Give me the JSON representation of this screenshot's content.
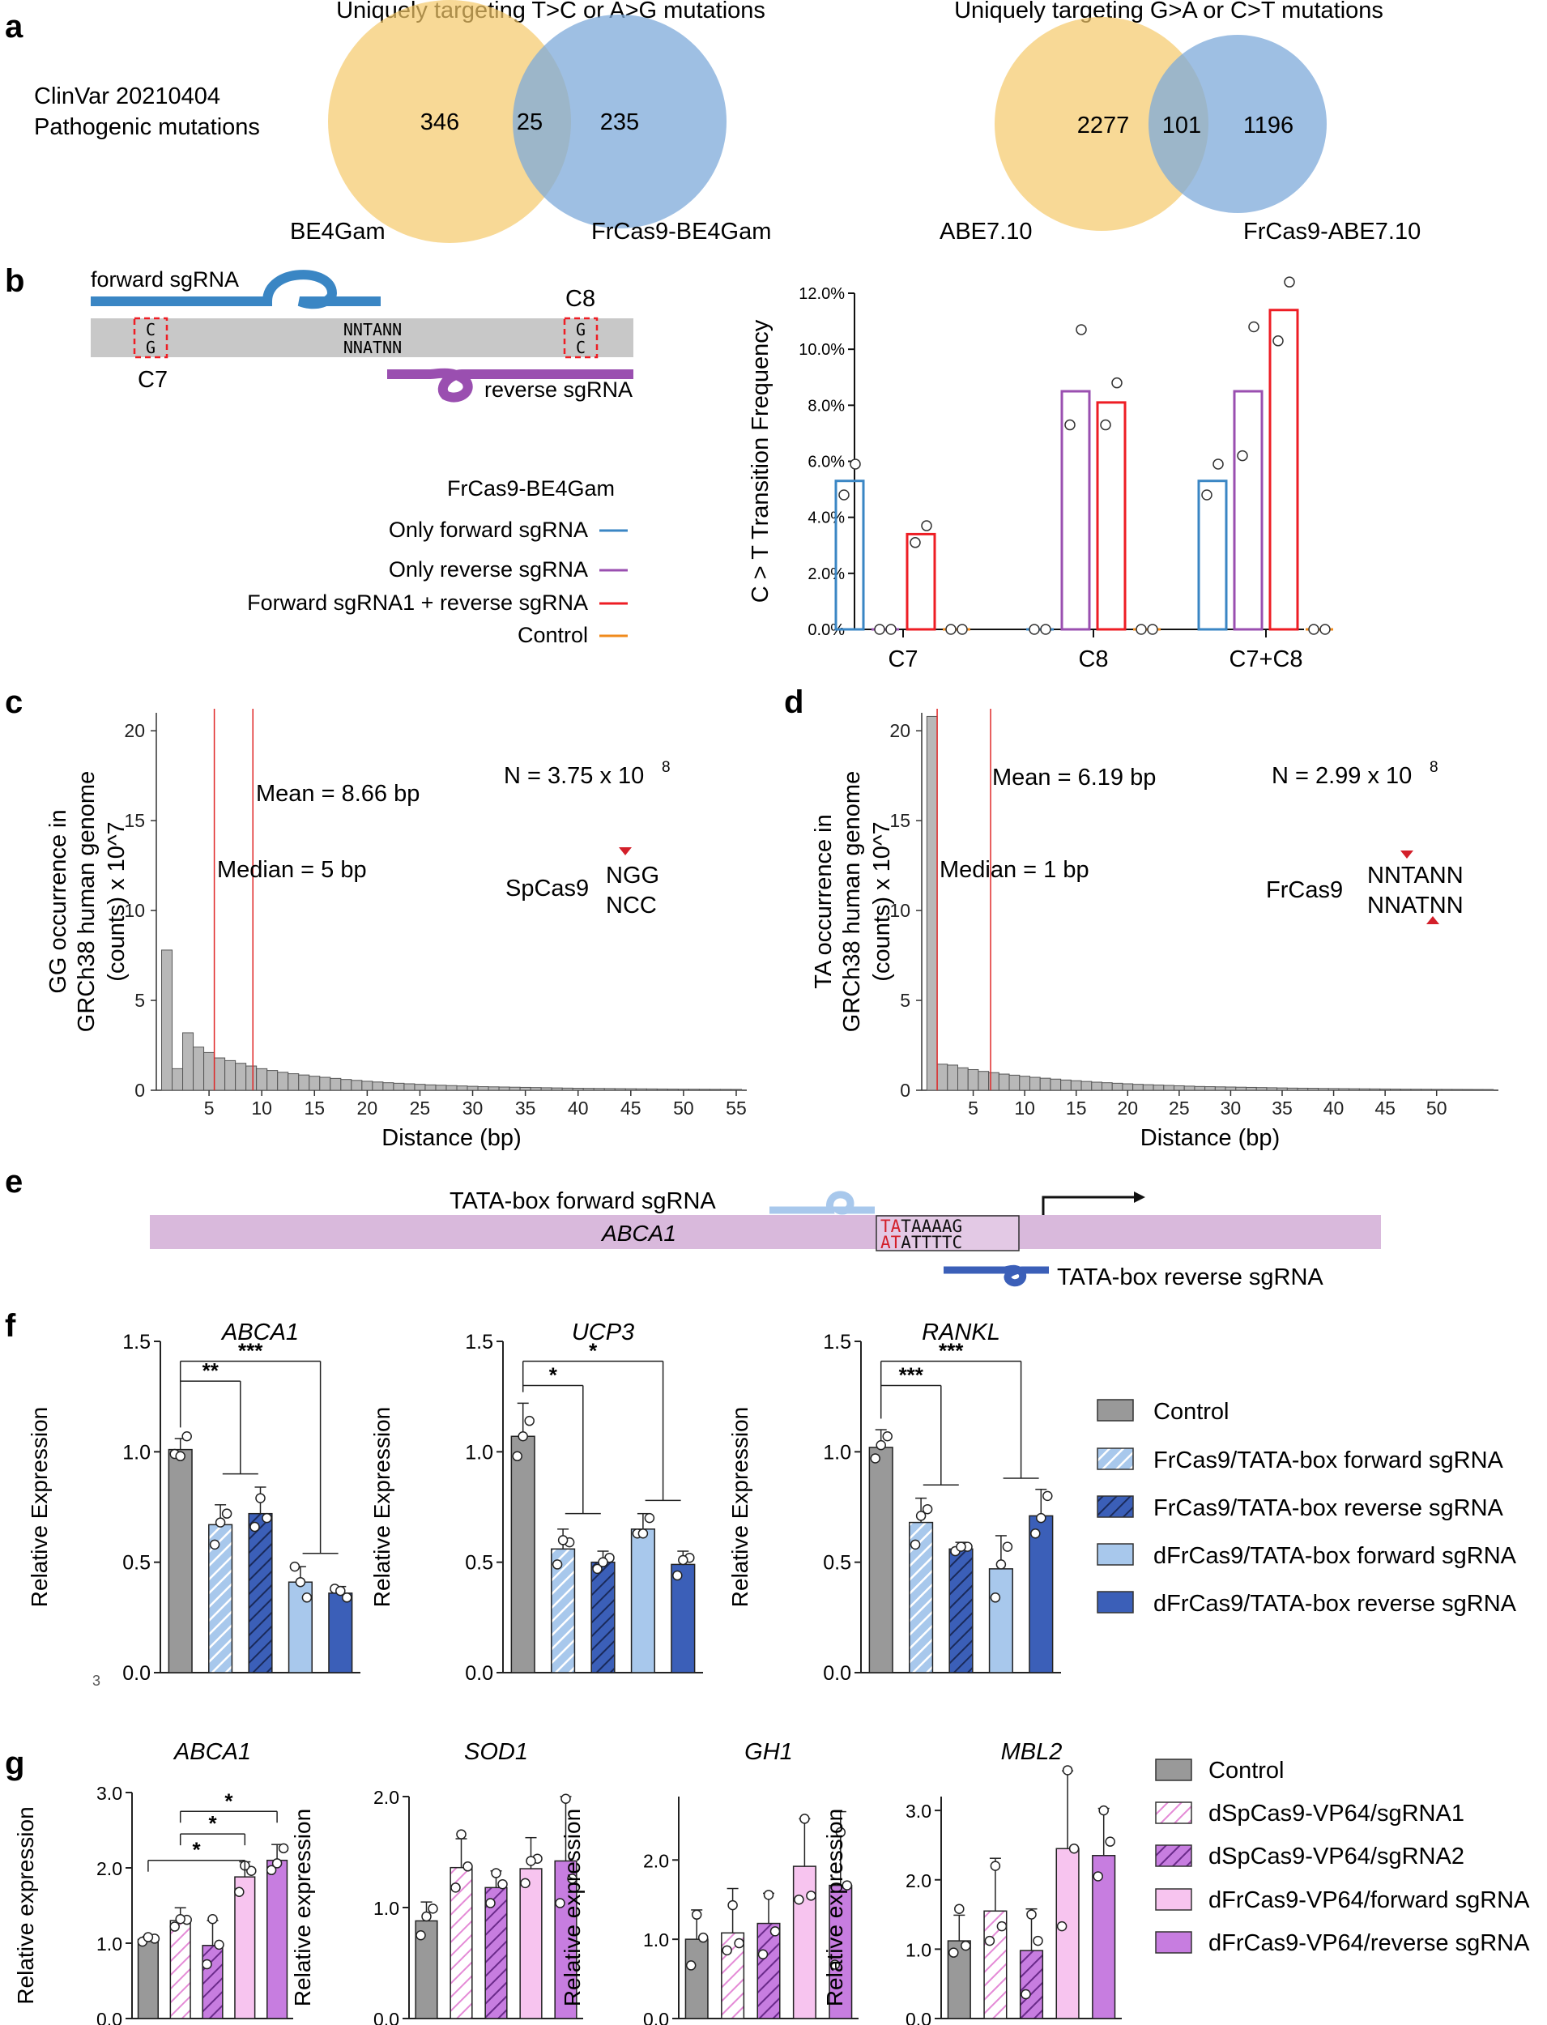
{
  "panel_labels": {
    "a": "a",
    "b": "b",
    "c": "c",
    "d": "d",
    "e": "e",
    "f": "f",
    "g": "g"
  },
  "colors": {
    "venn_left": "#f5c96a",
    "venn_right": "#7ea9d9",
    "grey": "#999999",
    "light_blue": "#a8c8ec",
    "dark_blue": "#3b5fb8",
    "pink": "#f7c4ef",
    "purple": "#c77de0",
    "blue_line": "#3a86c4",
    "purple_line": "#9a4fb0",
    "red_line": "#ee1d24",
    "orange_line": "#f08a1c"
  },
  "panel_a": {
    "row_label_1": "ClinVar 20210404",
    "row_label_2": "Pathogenic mutations",
    "venns": [
      {
        "title": "Uniquely targeting T>C or A>G mutations",
        "left_count": "346",
        "overlap_count": "25",
        "right_count": "235",
        "left_label": "BE4Gam",
        "right_label": "FrCas9-BE4Gam"
      },
      {
        "title": "Uniquely targeting G>A or C>T mutations",
        "left_count": "2277",
        "overlap_count": "101",
        "right_count": "1196",
        "left_label": "ABE7.10",
        "right_label": "FrCas9-ABE7.10"
      }
    ]
  },
  "panel_b": {
    "forward_sgrna": "forward sgRNA",
    "reverse_sgrna": "reverse sgRNA",
    "c7": "C7",
    "c8": "C8",
    "c7_top": "C",
    "c7_bottom": "G",
    "c8_top": "G",
    "c8_bottom": "C",
    "pam_top": "NNTANN",
    "pam_bottom": "NNATNN",
    "legend_title": "FrCas9-BE4Gam",
    "legend": [
      "Only forward sgRNA",
      "Only reverse sgRNA",
      "Forward sgRNA1 + reverse sgRNA",
      "Control"
    ]
  },
  "chart_data": [
    {
      "id": "b",
      "type": "bar",
      "ylabel": "C > T Transition Frequency",
      "ylim": [
        0,
        12
      ],
      "ytick_labels": [
        "0.0%",
        "2.0%",
        "4.0%",
        "6.0%",
        "8.0%",
        "10.0%",
        "12.0%"
      ],
      "categories": [
        "C7",
        "C8",
        "C7+C8"
      ],
      "series": [
        {
          "name": "Only forward sgRNA",
          "values": [
            5.3,
            0.0,
            5.3
          ],
          "points": [
            [
              4.8,
              5.9
            ],
            [
              0,
              0
            ],
            [
              4.8,
              5.9
            ]
          ]
        },
        {
          "name": "Only reverse sgRNA",
          "values": [
            0.0,
            8.5,
            8.5
          ],
          "points": [
            [
              0,
              0
            ],
            [
              7.3,
              10.7
            ],
            [
              6.2,
              10.8
            ]
          ]
        },
        {
          "name": "Forward sgRNA1 + reverse sgRNA",
          "values": [
            3.4,
            8.1,
            11.4
          ],
          "points": [
            [
              3.1,
              3.7
            ],
            [
              7.3,
              8.8
            ],
            [
              10.3,
              12.4
            ]
          ]
        },
        {
          "name": "Control",
          "values": [
            0.0,
            0.0,
            0.0
          ],
          "points": [
            [
              0,
              0
            ],
            [
              0,
              0
            ],
            [
              0,
              0
            ]
          ]
        }
      ]
    },
    {
      "id": "c",
      "type": "bar",
      "xlabel": "Distance (bp)",
      "ylabel1": "GG occurrence in",
      "ylabel2": "GRCh38 human genome",
      "ylabel3": "(counts) x 10^7",
      "xlim": [
        0,
        56
      ],
      "ylim": [
        0,
        21
      ],
      "xticks": [
        5,
        10,
        15,
        20,
        25,
        30,
        35,
        40,
        45,
        50,
        55
      ],
      "yticks": [
        0,
        5,
        10,
        15,
        20
      ],
      "x": [
        1,
        2,
        3,
        4,
        5,
        6,
        7,
        8,
        9,
        10,
        11,
        12,
        13,
        14,
        15,
        16,
        17,
        18,
        19,
        20,
        21,
        22,
        23,
        24,
        25,
        26,
        27,
        28,
        29,
        30,
        31,
        32,
        33,
        34,
        35,
        36,
        37,
        38,
        39,
        40,
        41,
        42,
        43,
        44,
        45,
        46,
        47,
        48,
        49,
        50,
        51,
        52,
        53,
        54,
        55
      ],
      "values": [
        7.8,
        1.2,
        3.2,
        2.4,
        2.1,
        1.8,
        1.65,
        1.5,
        1.35,
        1.2,
        1.1,
        1.0,
        0.92,
        0.85,
        0.78,
        0.72,
        0.66,
        0.6,
        0.55,
        0.5,
        0.46,
        0.42,
        0.39,
        0.36,
        0.33,
        0.3,
        0.28,
        0.26,
        0.24,
        0.22,
        0.2,
        0.19,
        0.18,
        0.17,
        0.16,
        0.15,
        0.14,
        0.13,
        0.12,
        0.11,
        0.105,
        0.1,
        0.095,
        0.09,
        0.085,
        0.08,
        0.075,
        0.07,
        0.065,
        0.06,
        0.058,
        0.055,
        0.052,
        0.05,
        0.048
      ],
      "mean": 8.66,
      "median": 5,
      "mean_label": "Mean = 8.66 bp",
      "median_label": "Median = 5 bp",
      "n_label": "N = 3.75 x 10",
      "n_exp": "8",
      "enzyme": "SpCas9",
      "pam_top": "NGG",
      "pam_bottom": "NCC"
    },
    {
      "id": "d",
      "type": "bar",
      "xlabel": "Distance (bp)",
      "ylabel1": "TA occurrence in",
      "ylabel2": "GRCh38 human genome",
      "ylabel3": "(counts) x 10^7",
      "xlim": [
        0,
        56
      ],
      "ylim": [
        0,
        21
      ],
      "xticks": [
        5,
        10,
        15,
        20,
        25,
        30,
        35,
        40,
        45,
        50
      ],
      "yticks": [
        0,
        5,
        10,
        15,
        20
      ],
      "x": [
        1,
        2,
        3,
        4,
        5,
        6,
        7,
        8,
        9,
        10,
        11,
        12,
        13,
        14,
        15,
        16,
        17,
        18,
        19,
        20,
        21,
        22,
        23,
        24,
        25,
        26,
        27,
        28,
        29,
        30,
        31,
        32,
        33,
        34,
        35,
        36,
        37,
        38,
        39,
        40,
        41,
        42,
        43,
        44,
        45,
        46,
        47,
        48,
        49,
        50,
        51,
        52,
        53,
        54,
        55
      ],
      "values": [
        20.8,
        1.45,
        1.4,
        1.25,
        1.15,
        1.05,
        0.98,
        0.9,
        0.84,
        0.78,
        0.72,
        0.67,
        0.62,
        0.57,
        0.53,
        0.49,
        0.45,
        0.42,
        0.39,
        0.36,
        0.33,
        0.31,
        0.29,
        0.27,
        0.25,
        0.23,
        0.21,
        0.2,
        0.19,
        0.18,
        0.17,
        0.16,
        0.15,
        0.14,
        0.13,
        0.12,
        0.115,
        0.11,
        0.1,
        0.095,
        0.09,
        0.085,
        0.08,
        0.075,
        0.07,
        0.065,
        0.06,
        0.058,
        0.055,
        0.052,
        0.05,
        0.048,
        0.046,
        0.044,
        0.042
      ],
      "mean": 6.19,
      "median": 1,
      "mean_label": "Mean = 6.19 bp",
      "median_label": "Median = 1 bp",
      "n_label": "N = 2.99 x 10",
      "n_exp": "8",
      "enzyme": "FrCas9",
      "pam_top": "NNTANN",
      "pam_bottom": "NNATNN"
    },
    {
      "id": "f_ABCA1",
      "type": "bar",
      "title": "ABCA1",
      "ylabel": "Relative Expression",
      "ylim": [
        0,
        1.5
      ],
      "ytick_labels": [
        "0.0",
        "0.5",
        "1.0",
        "1.5"
      ],
      "categories": [
        "Control",
        "FrCas9/TATA-box forward sgRNA",
        "FrCas9/TATA-box reverse sgRNA",
        "dFrCas9/TATA-box forward sgRNA",
        "dFrCas9/TATA-box reverse sgRNA"
      ],
      "values": [
        1.01,
        0.67,
        0.72,
        0.41,
        0.36
      ],
      "errors": [
        0.05,
        0.09,
        0.12,
        0.07,
        0.03
      ],
      "points": [
        [
          0.99,
          1.07,
          0.98
        ],
        [
          0.58,
          0.72,
          0.68
        ],
        [
          0.66,
          0.7,
          0.79
        ],
        [
          0.48,
          0.34,
          0.41
        ],
        [
          0.38,
          0.34,
          0.37
        ]
      ],
      "significance": [
        {
          "label": "**",
          "level": 1.32,
          "to_level": 0.9
        },
        {
          "label": "***",
          "level": 1.41,
          "to_level": 0.54
        }
      ]
    },
    {
      "id": "f_UCP3",
      "type": "bar",
      "title": "UCP3",
      "ylabel": "Relative Expression",
      "ylim": [
        0,
        1.5
      ],
      "ytick_labels": [
        "0.0",
        "0.5",
        "1.0",
        "1.5"
      ],
      "categories": [
        "Control",
        "FrCas9/TATA-box forward sgRNA",
        "FrCas9/TATA-box reverse sgRNA",
        "dFrCas9/TATA-box forward sgRNA",
        "dFrCas9/TATA-box reverse sgRNA"
      ],
      "values": [
        1.07,
        0.56,
        0.5,
        0.65,
        0.49
      ],
      "errors": [
        0.15,
        0.09,
        0.05,
        0.07,
        0.06
      ],
      "points": [
        [
          0.98,
          1.14,
          1.07
        ],
        [
          0.49,
          0.59,
          0.6
        ],
        [
          0.47,
          0.52,
          0.5
        ],
        [
          0.63,
          0.7,
          0.63
        ],
        [
          0.44,
          0.52,
          0.51
        ]
      ],
      "significance": [
        {
          "label": "*",
          "level": 1.3,
          "to_level": 0.72
        },
        {
          "label": "*",
          "level": 1.41,
          "to_level": 0.78
        }
      ]
    },
    {
      "id": "f_RANKL",
      "type": "bar",
      "title": "RANKL",
      "ylabel": "Relative Expression",
      "ylim": [
        0,
        1.5
      ],
      "ytick_labels": [
        "0.0",
        "0.5",
        "1.0",
        "1.5"
      ],
      "categories": [
        "Control",
        "FrCas9/TATA-box forward sgRNA",
        "FrCas9/TATA-box reverse sgRNA",
        "dFrCas9/TATA-box forward sgRNA",
        "dFrCas9/TATA-box reverse sgRNA"
      ],
      "values": [
        1.02,
        0.68,
        0.56,
        0.47,
        0.71
      ],
      "errors": [
        0.08,
        0.11,
        0.03,
        0.15,
        0.12
      ],
      "points": [
        [
          0.97,
          1.07,
          1.03
        ],
        [
          0.58,
          0.74,
          0.71
        ],
        [
          0.55,
          0.57,
          0.57
        ],
        [
          0.34,
          0.57,
          0.49
        ],
        [
          0.63,
          0.8,
          0.7
        ]
      ],
      "significance": [
        {
          "label": "***",
          "level": 1.3,
          "to_level": 0.85
        },
        {
          "label": "***",
          "level": 1.41,
          "to_level": 0.88
        }
      ]
    },
    {
      "id": "g_ABCA1",
      "type": "bar",
      "title": "ABCA1",
      "ylabel": "Relative expression",
      "ylim": [
        0,
        3.0
      ],
      "ytick_labels": [
        "0.0",
        "1.0",
        "2.0",
        "3.0"
      ],
      "categories": [
        "Control",
        "dSpCas9-VP64/sgRNA1",
        "dSpCas9-VP64/sgRNA2",
        "dFrCas9-VP64/forward sgRNA",
        "dFrCas9-VP64/reverse sgRNA"
      ],
      "values": [
        1.05,
        1.3,
        0.97,
        1.88,
        2.1
      ],
      "errors": [
        0.04,
        0.17,
        0.33,
        0.2,
        0.21
      ],
      "points": [
        [
          1.02,
          1.06,
          1.08
        ],
        [
          1.22,
          1.31,
          1.32
        ],
        [
          0.72,
          0.98,
          1.32
        ],
        [
          1.68,
          1.96,
          2.03
        ],
        [
          1.97,
          2.26,
          2.06
        ]
      ],
      "significance": [
        {
          "label": "*",
          "x1": 0,
          "x2": 3,
          "level": 2.1
        },
        {
          "label": "*",
          "x1": 1,
          "x2": 3,
          "level": 2.45
        },
        {
          "label": "*",
          "x1": 1,
          "x2": 4,
          "level": 2.75
        }
      ]
    },
    {
      "id": "g_SOD1",
      "type": "bar",
      "title": "SOD1",
      "ylabel": "Relative expression",
      "ylim": [
        0,
        2.0
      ],
      "ytick_labels": [
        "0.0",
        "1.0",
        "2.0"
      ],
      "categories": [
        "Control",
        "dSpCas9-VP64/sgRNA1",
        "dSpCas9-VP64/sgRNA2",
        "dFrCas9-VP64/forward sgRNA",
        "dFrCas9-VP64/reverse sgRNA"
      ],
      "values": [
        0.88,
        1.36,
        1.18,
        1.35,
        1.42
      ],
      "errors": [
        0.17,
        0.26,
        0.15,
        0.28,
        0.58
      ],
      "points": [
        [
          0.75,
          0.99,
          0.92
        ],
        [
          1.18,
          1.37,
          1.66
        ],
        [
          1.04,
          1.21,
          1.31
        ],
        [
          1.22,
          1.44,
          1.42
        ],
        [
          1.04,
          1.26,
          1.98
        ]
      ],
      "significance": []
    },
    {
      "id": "g_GH1",
      "type": "bar",
      "title": "GH1",
      "ylabel": "Relative expression",
      "ylim": [
        0,
        2.8
      ],
      "ytick_labels": [
        "0.0",
        "1.0",
        "2.0"
      ],
      "categories": [
        "Control",
        "dSpCas9-VP64/sgRNA1",
        "dSpCas9-VP64/sgRNA2",
        "dFrCas9-VP64/forward sgRNA",
        "dFrCas9-VP64/reverse sgRNA"
      ],
      "values": [
        1.0,
        1.08,
        1.2,
        1.92,
        1.68
      ],
      "errors": [
        0.37,
        0.56,
        0.38,
        0.6,
        0.93
      ],
      "points": [
        [
          0.67,
          1.02,
          1.31
        ],
        [
          0.86,
          0.95,
          1.43
        ],
        [
          0.81,
          1.1,
          1.56
        ],
        [
          1.5,
          1.55,
          2.52
        ],
        [
          0.68,
          1.68,
          2.35
        ]
      ],
      "significance": []
    },
    {
      "id": "g_MBL2",
      "type": "bar",
      "title": "MBL2",
      "ylabel": "Relative expression",
      "ylim": [
        0,
        3.2
      ],
      "ytick_labels": [
        "0.0",
        "1.0",
        "2.0",
        "3.0"
      ],
      "categories": [
        "Control",
        "dSpCas9-VP64/sgRNA1",
        "dSpCas9-VP64/sgRNA2",
        "dFrCas9-VP64/forward sgRNA",
        "dFrCas9-VP64/reverse sgRNA"
      ],
      "values": [
        1.12,
        1.55,
        0.98,
        2.45,
        2.35
      ],
      "errors": [
        0.37,
        0.76,
        0.6,
        1.12,
        0.68
      ],
      "points": [
        [
          0.95,
          1.05,
          1.58
        ],
        [
          1.12,
          1.33,
          2.2
        ],
        [
          0.35,
          1.12,
          1.5
        ],
        [
          1.33,
          2.45,
          3.58
        ],
        [
          2.05,
          2.55,
          3.0
        ]
      ],
      "significance": []
    }
  ],
  "panel_e": {
    "forward": "TATA-box forward sgRNA",
    "reverse": "TATA-box reverse sgRNA",
    "gene": "ABCA1",
    "top_red": "TA",
    "top_black": "TAAAAG",
    "bottom_red": "AT",
    "bottom_black": "ATTTTC"
  },
  "panel_f": {
    "legend": [
      "Control",
      "FrCas9/TATA-box forward sgRNA",
      "FrCas9/TATA-box reverse sgRNA",
      "dFrCas9/TATA-box forward sgRNA",
      "dFrCas9/TATA-box reverse sgRNA"
    ],
    "stray_mark": "3"
  },
  "panel_g": {
    "legend": [
      "Control",
      "dSpCas9-VP64/sgRNA1",
      "dSpCas9-VP64/sgRNA2",
      "dFrCas9-VP64/forward sgRNA",
      "dFrCas9-VP64/reverse sgRNA"
    ]
  },
  "distance_xlabel": "Distance (bp)"
}
